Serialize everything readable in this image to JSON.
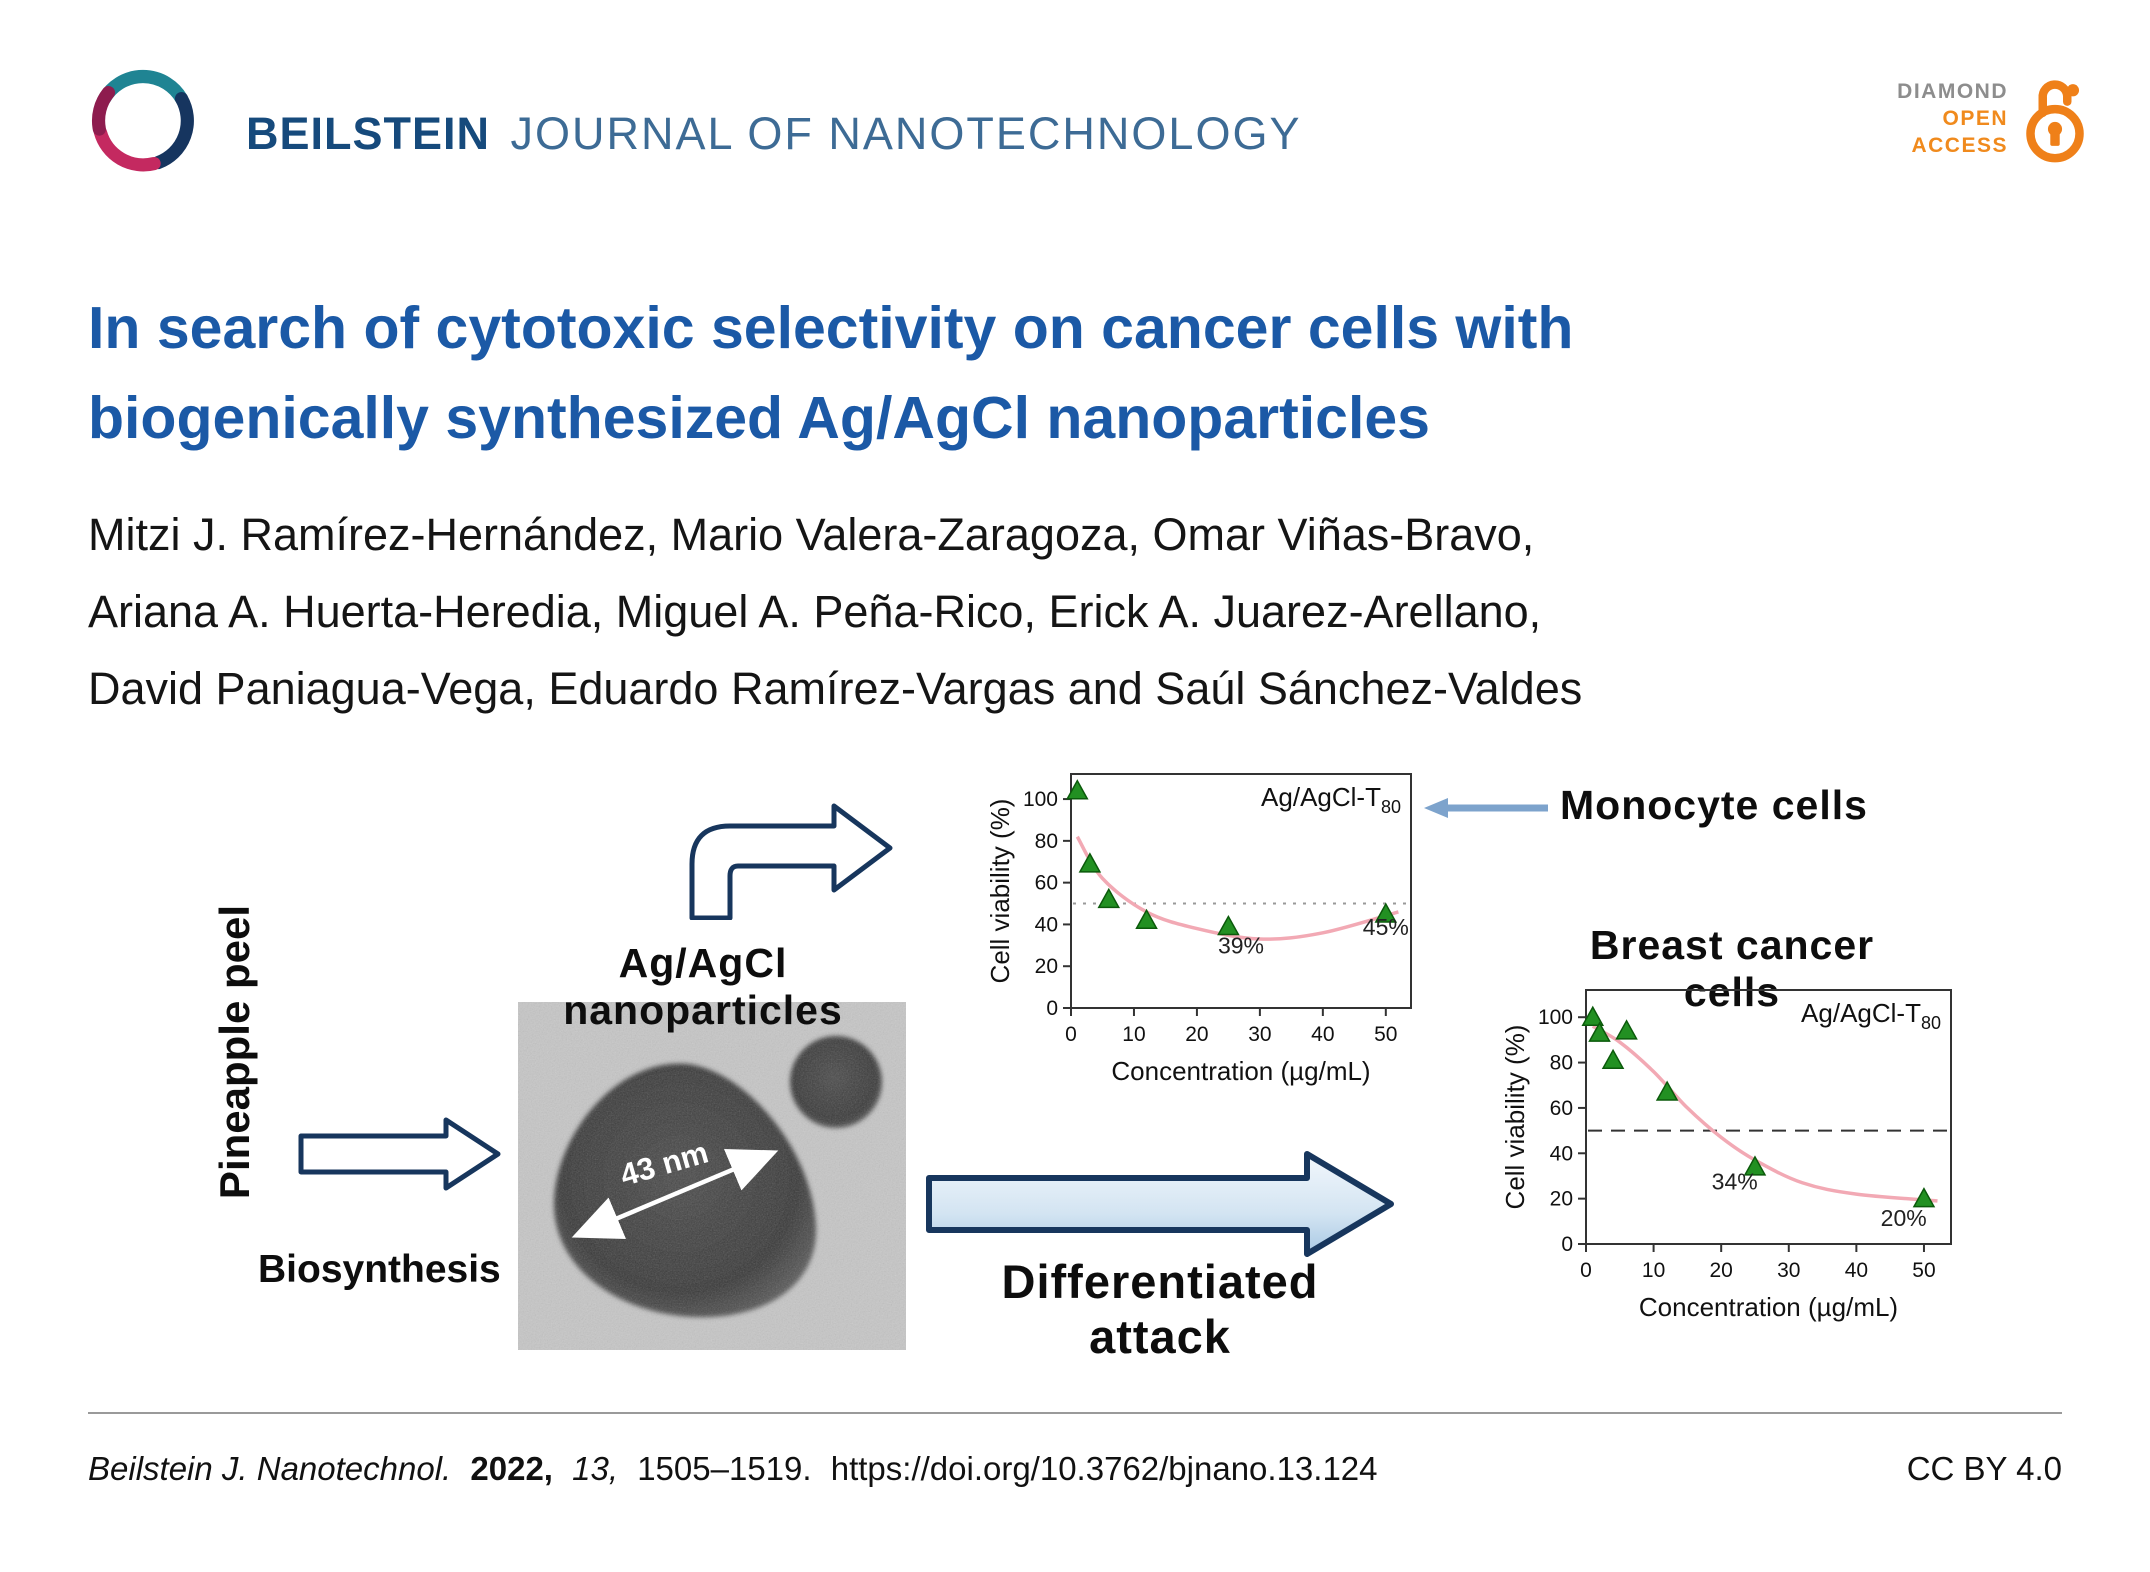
{
  "header": {
    "journal_bold": "BEILSTEIN",
    "journal_rest": "JOURNAL OF NANOTECHNOLOGY",
    "open_access": {
      "diamond": "DIAMOND",
      "open": "OPEN",
      "access": "ACCESS"
    }
  },
  "title": {
    "line1": "In search of cytotoxic selectivity on cancer cells with",
    "line2": "biogenically synthesized Ag/AgCl nanoparticles"
  },
  "authors": {
    "line1": "Mitzi J. Ramírez-Hernández, Mario Valera-Zaragoza, Omar Viñas-Bravo,",
    "line2": "Ariana A. Huerta-Heredia, Miguel A. Peña-Rico, Erick A. Juarez-Arellano,",
    "line3": "David Paniagua-Vega, Eduardo Ramírez-Vargas and Saúl Sánchez-Valdes"
  },
  "graphic": {
    "pineapple_peel": "Pineapple peel",
    "biosynthesis": "Biosynthesis",
    "nanoparticles": "Ag/AgCl nanoparticles",
    "tem_scale": "43 nm",
    "differentiated_attack": "Differentiated attack"
  },
  "chart_data": [
    {
      "type": "scatter",
      "title": "Monocyte cells",
      "in_plot_label": "Ag/AgCl-T",
      "in_plot_label_sub": "80",
      "xlabel": "Concentration (µg/mL)",
      "ylabel": "Cell viability (%)",
      "x": [
        1,
        3,
        6,
        12,
        25,
        50
      ],
      "y": [
        104,
        69,
        52,
        42,
        39,
        45
      ],
      "annotations": [
        {
          "text": "39%",
          "x": 27,
          "y": 26
        },
        {
          "text": "45%",
          "x": 50,
          "y": 35
        }
      ],
      "xticks": [
        0,
        10,
        20,
        30,
        40,
        50
      ],
      "yticks": [
        0,
        20,
        40,
        60,
        80,
        100
      ],
      "xlim": [
        0,
        54
      ],
      "ylim": [
        0,
        112
      ],
      "threshold_y": 50,
      "threshold_style": "dotted",
      "curve": [
        [
          1,
          82
        ],
        [
          5,
          62
        ],
        [
          12,
          46
        ],
        [
          20,
          38
        ],
        [
          30,
          33
        ],
        [
          40,
          36
        ],
        [
          52,
          46
        ]
      ],
      "marker_color": "#229022",
      "curve_color": "#f2a9b4",
      "legend_position": "top-right",
      "grid": false
    },
    {
      "type": "scatter",
      "title": "Breast cancer cells",
      "in_plot_label": "Ag/AgCl-T",
      "in_plot_label_sub": "80",
      "xlabel": "Concentration (µg/mL)",
      "ylabel": "Cell viability (%)",
      "x": [
        1,
        2,
        4,
        6,
        12,
        25,
        50
      ],
      "y": [
        100,
        93,
        81,
        94,
        67,
        34,
        20
      ],
      "annotations": [
        {
          "text": "34%",
          "x": 22,
          "y": 24
        },
        {
          "text": "20%",
          "x": 47,
          "y": 8
        }
      ],
      "xticks": [
        0,
        10,
        20,
        30,
        40,
        50
      ],
      "yticks": [
        0,
        20,
        40,
        60,
        80,
        100
      ],
      "xlim": [
        0,
        54
      ],
      "ylim": [
        0,
        112
      ],
      "threshold_y": 50,
      "threshold_style": "dashed",
      "curve": [
        [
          1,
          96
        ],
        [
          5,
          89
        ],
        [
          10,
          76
        ],
        [
          15,
          60
        ],
        [
          20,
          47
        ],
        [
          25,
          37
        ],
        [
          32,
          27
        ],
        [
          40,
          22
        ],
        [
          52,
          19
        ]
      ],
      "marker_color": "#229022",
      "curve_color": "#f2a9b4",
      "legend_position": "top-right",
      "grid": false
    }
  ],
  "footer": {
    "citation": {
      "journal": "Beilstein J. Nanotechnol.",
      "year": "2022,",
      "volume": "13,",
      "pages": "1505–1519.",
      "doi": "https://doi.org/10.3762/bjnano.13.124"
    },
    "license": "CC BY 4.0"
  },
  "colors": {
    "title_blue": "#1b59a6",
    "journal_blue": "#164a7c",
    "open_access_orange": "#f08a1d",
    "arrow_navy": "#17365d",
    "arrow_fill_blue": "#bdd6eb",
    "pointer_blue": "#7da3cc"
  }
}
